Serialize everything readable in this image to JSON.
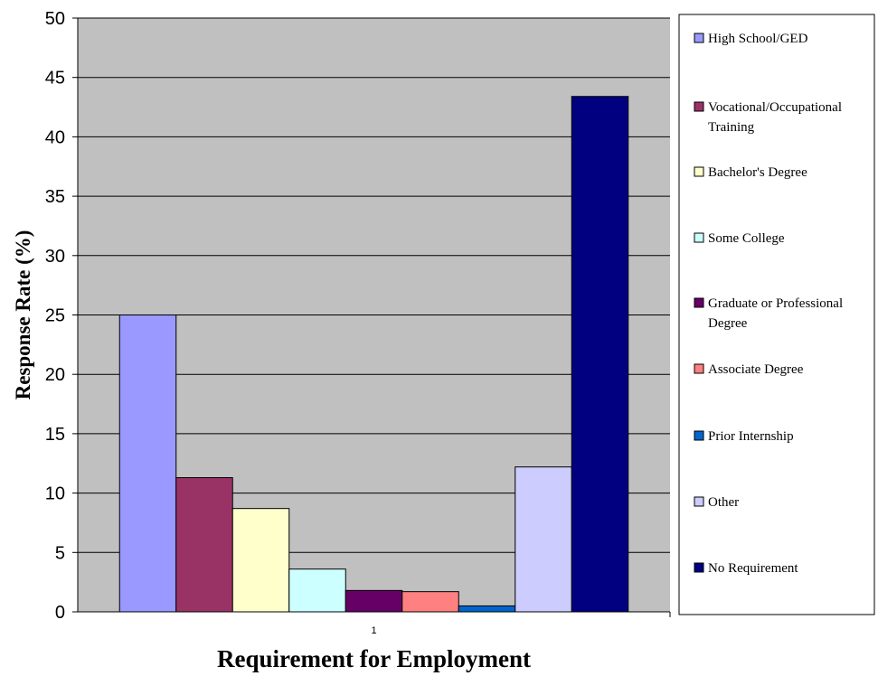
{
  "chart_data": {
    "type": "bar",
    "title": "",
    "xlabel": "Requirement for Employment",
    "ylabel": "Response Rate (%)",
    "categories": [
      "1"
    ],
    "ylim": [
      0,
      50
    ],
    "ytick_step": 5,
    "grid": true,
    "legend_position": "right",
    "plot_background": "#c0c0c0",
    "series": [
      {
        "name": "High School/GED",
        "values": [
          25
        ],
        "color": "#9999ff"
      },
      {
        "name": "Vocational/Occupational Training",
        "values": [
          11.3
        ],
        "color": "#993366"
      },
      {
        "name": "Bachelor's Degree",
        "values": [
          8.7
        ],
        "color": "#ffffcc"
      },
      {
        "name": "Some College",
        "values": [
          3.6
        ],
        "color": "#ccffff"
      },
      {
        "name": "Graduate or Professional Degree",
        "values": [
          1.8
        ],
        "color": "#660066"
      },
      {
        "name": "Associate Degree",
        "values": [
          1.7
        ],
        "color": "#ff8080"
      },
      {
        "name": "Prior Internship",
        "values": [
          0.5
        ],
        "color": "#0066cc"
      },
      {
        "name": "Other",
        "values": [
          12.2
        ],
        "color": "#ccccff"
      },
      {
        "name": "No Requirement",
        "values": [
          43.4
        ],
        "color": "#000080"
      }
    ]
  }
}
